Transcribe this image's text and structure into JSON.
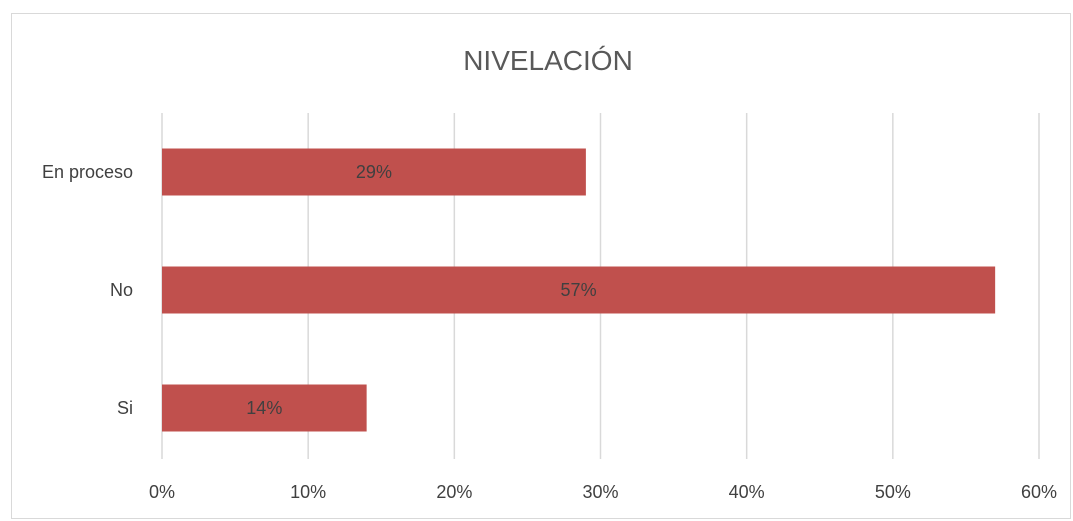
{
  "chart_data": {
    "type": "bar",
    "orientation": "horizontal",
    "title": "NIVELACIÓN",
    "categories": [
      "En proceso",
      "No",
      "Si"
    ],
    "values": [
      0.29,
      0.57,
      0.14
    ],
    "data_labels": [
      "29%",
      "57%",
      "14%"
    ],
    "x_ticks": [
      "0%",
      "10%",
      "20%",
      "30%",
      "40%",
      "50%",
      "60%"
    ],
    "xlim": [
      0,
      0.6
    ],
    "grid": true,
    "legend": "none",
    "bar_color": "#c0504d"
  }
}
